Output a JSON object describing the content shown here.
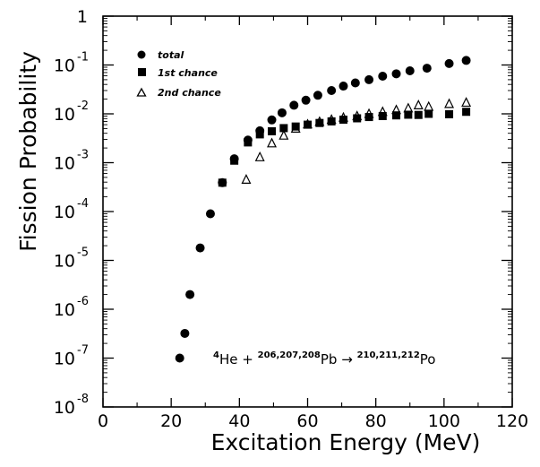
{
  "chart_data": {
    "type": "scatter",
    "xlabel": "Excitation Energy (MeV)",
    "ylabel": "Fission Probability",
    "xlim": [
      0,
      120
    ],
    "ylim_log10": [
      -8,
      0
    ],
    "yscale": "log",
    "x_ticks": [
      "0",
      "20",
      "40",
      "60",
      "80",
      "100",
      "120"
    ],
    "y_ticks": [
      {
        "base": "1",
        "exp": ""
      },
      {
        "base": "10",
        "exp": "-1"
      },
      {
        "base": "10",
        "exp": "-2"
      },
      {
        "base": "10",
        "exp": "-3"
      },
      {
        "base": "10",
        "exp": "-4"
      },
      {
        "base": "10",
        "exp": "-5"
      },
      {
        "base": "10",
        "exp": "-6"
      },
      {
        "base": "10",
        "exp": "-7"
      },
      {
        "base": "10",
        "exp": "-8"
      }
    ],
    "grid": false,
    "legend_position": "top-left",
    "annotation": {
      "text": "4He + 206,207,208Pb → 210,211,212Po",
      "parts": {
        "sup1": "4",
        "el1": "He +",
        "sup2": "206,207,208",
        "el2": "Pb",
        "arrow": "→",
        "sup3": "210,211,212",
        "el3": "Po"
      }
    },
    "series": [
      {
        "name": "total",
        "marker": "circle",
        "x": [
          22.5,
          24.0,
          25.5,
          28.5,
          31.5,
          35.0,
          38.5,
          42.5,
          46.0,
          49.5,
          52.5,
          56.0,
          59.5,
          63.0,
          67.0,
          70.5,
          74.0,
          78.0,
          82.0,
          86.0,
          90.0,
          95.0,
          101.5,
          106.5
        ],
        "y": [
          1e-07,
          3.2e-07,
          2e-06,
          1.8e-05,
          9e-05,
          0.00039,
          0.0012,
          0.0029,
          0.0045,
          0.0075,
          0.0105,
          0.015,
          0.019,
          0.024,
          0.03,
          0.037,
          0.043,
          0.05,
          0.059,
          0.066,
          0.076,
          0.086,
          0.107,
          0.124
        ]
      },
      {
        "name": "1st chance",
        "marker": "square",
        "x": [
          35.0,
          38.5,
          42.5,
          46.0,
          49.5,
          53.0,
          56.5,
          60.0,
          63.5,
          67.0,
          70.5,
          74.5,
          78.0,
          82.0,
          86.0,
          89.5,
          92.5,
          95.5,
          101.5,
          106.5
        ],
        "y": [
          0.00039,
          0.0011,
          0.0026,
          0.0038,
          0.0044,
          0.0051,
          0.0055,
          0.006,
          0.0065,
          0.007,
          0.0076,
          0.0081,
          0.0086,
          0.009,
          0.0093,
          0.0096,
          0.0095,
          0.01,
          0.0098,
          0.011
        ]
      },
      {
        "name": "2nd chance",
        "marker": "triangle",
        "x": [
          42.0,
          46.0,
          49.5,
          53.0,
          56.5,
          60.0,
          63.5,
          67.0,
          70.5,
          74.5,
          78.0,
          82.0,
          86.0,
          89.5,
          92.5,
          95.5,
          101.5,
          106.5
        ],
        "y": [
          0.00045,
          0.0013,
          0.0025,
          0.0036,
          0.005,
          0.0061,
          0.0069,
          0.0076,
          0.0084,
          0.009,
          0.01,
          0.011,
          0.012,
          0.013,
          0.015,
          0.014,
          0.016,
          0.017
        ]
      }
    ]
  }
}
